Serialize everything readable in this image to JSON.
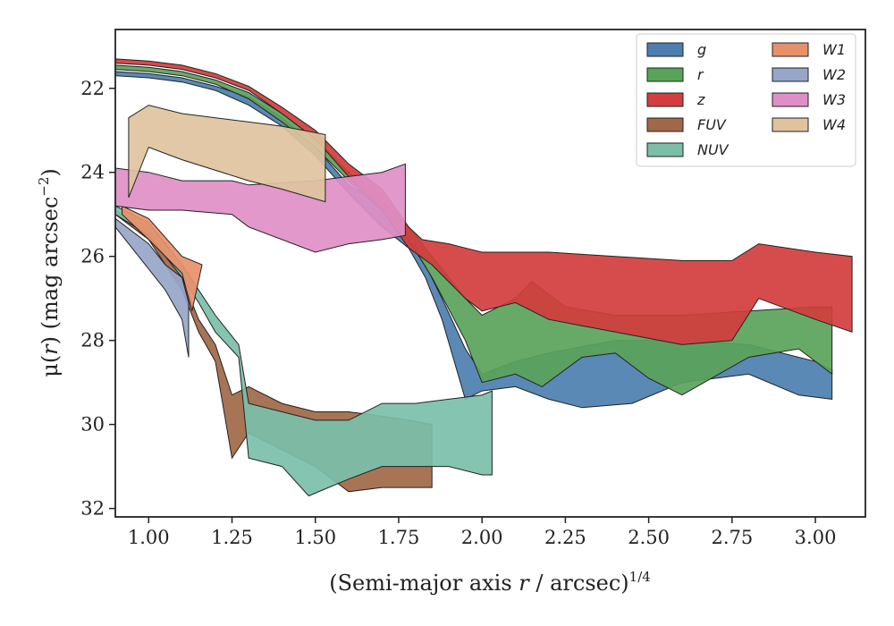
{
  "chart_data": {
    "type": "area",
    "xlabel": "(Semi-major axis r / arcsec)^1/4",
    "xlabel_parts": {
      "pre": "(Semi-major axis ",
      "var": "r",
      "mid": " / arcsec)",
      "sup": "1/4"
    },
    "ylabel": "μ(r) (mag arcsec^−2)",
    "ylabel_parts": {
      "mu": "μ(",
      "var": "r",
      "post": ") (mag arcsec",
      "sup": "−2",
      "close": ")"
    },
    "xlim": [
      0.9,
      3.15
    ],
    "ylim": [
      32.2,
      20.6
    ],
    "y_inverted": true,
    "xticks": [
      "1.00",
      "1.25",
      "1.50",
      "1.75",
      "2.00",
      "2.25",
      "2.50",
      "2.75",
      "3.00"
    ],
    "yticks": [
      "22",
      "24",
      "26",
      "28",
      "30",
      "32"
    ],
    "grid": false,
    "legend_position": "top-right",
    "legend_columns": 2,
    "series": [
      {
        "name": "g",
        "color": "#4c7fb0",
        "upper": [
          [
            0.9,
            21.6
          ],
          [
            1.0,
            21.65
          ],
          [
            1.1,
            21.75
          ],
          [
            1.2,
            21.95
          ],
          [
            1.3,
            22.2
          ],
          [
            1.4,
            22.7
          ],
          [
            1.5,
            23.4
          ],
          [
            1.6,
            24.3
          ],
          [
            1.7,
            24.8
          ],
          [
            1.78,
            25.5
          ],
          [
            1.83,
            26.2
          ],
          [
            1.88,
            27.0
          ],
          [
            1.95,
            28.2
          ],
          [
            2.0,
            28.8
          ],
          [
            2.1,
            28.5
          ],
          [
            2.2,
            28.3
          ],
          [
            2.4,
            28.0
          ],
          [
            2.6,
            28.0
          ],
          [
            2.8,
            28.1
          ],
          [
            3.0,
            28.5
          ],
          [
            3.05,
            28.7
          ]
        ],
        "lower": [
          [
            0.9,
            21.7
          ],
          [
            1.0,
            21.75
          ],
          [
            1.1,
            21.85
          ],
          [
            1.2,
            22.05
          ],
          [
            1.3,
            22.4
          ],
          [
            1.4,
            22.9
          ],
          [
            1.5,
            23.6
          ],
          [
            1.6,
            24.5
          ],
          [
            1.7,
            25.3
          ],
          [
            1.78,
            25.8
          ],
          [
            1.83,
            26.5
          ],
          [
            1.88,
            27.5
          ],
          [
            1.95,
            29.4
          ],
          [
            2.0,
            29.2
          ],
          [
            2.1,
            29.1
          ],
          [
            2.2,
            29.4
          ],
          [
            2.3,
            29.6
          ],
          [
            2.45,
            29.5
          ],
          [
            2.6,
            29.0
          ],
          [
            2.8,
            28.8
          ],
          [
            2.95,
            29.3
          ],
          [
            3.05,
            29.4
          ]
        ]
      },
      {
        "name": "r",
        "color": "#5aa35a",
        "upper": [
          [
            0.9,
            21.45
          ],
          [
            1.0,
            21.5
          ],
          [
            1.1,
            21.6
          ],
          [
            1.2,
            21.8
          ],
          [
            1.3,
            22.1
          ],
          [
            1.4,
            22.6
          ],
          [
            1.5,
            23.2
          ],
          [
            1.6,
            24.0
          ],
          [
            1.7,
            24.6
          ],
          [
            1.78,
            25.3
          ],
          [
            1.85,
            26.0
          ],
          [
            1.95,
            27.0
          ],
          [
            2.0,
            27.4
          ],
          [
            2.1,
            27.0
          ],
          [
            2.15,
            26.6
          ],
          [
            2.25,
            27.2
          ],
          [
            2.4,
            27.4
          ],
          [
            2.6,
            27.4
          ],
          [
            2.8,
            27.3
          ],
          [
            3.0,
            27.2
          ],
          [
            3.05,
            27.2
          ]
        ],
        "lower": [
          [
            0.9,
            21.55
          ],
          [
            1.0,
            21.6
          ],
          [
            1.1,
            21.7
          ],
          [
            1.2,
            21.9
          ],
          [
            1.3,
            22.25
          ],
          [
            1.4,
            22.8
          ],
          [
            1.5,
            23.4
          ],
          [
            1.6,
            24.2
          ],
          [
            1.7,
            24.9
          ],
          [
            1.78,
            25.6
          ],
          [
            1.85,
            26.5
          ],
          [
            1.95,
            28.0
          ],
          [
            2.0,
            29.0
          ],
          [
            2.1,
            28.8
          ],
          [
            2.18,
            29.1
          ],
          [
            2.3,
            28.4
          ],
          [
            2.4,
            28.3
          ],
          [
            2.5,
            28.9
          ],
          [
            2.6,
            29.3
          ],
          [
            2.8,
            28.4
          ],
          [
            2.95,
            28.2
          ],
          [
            3.05,
            28.8
          ]
        ]
      },
      {
        "name": "z",
        "color": "#d23d3d",
        "upper": [
          [
            0.9,
            21.3
          ],
          [
            1.0,
            21.35
          ],
          [
            1.1,
            21.45
          ],
          [
            1.2,
            21.65
          ],
          [
            1.3,
            21.95
          ],
          [
            1.4,
            22.45
          ],
          [
            1.5,
            23.0
          ],
          [
            1.6,
            23.8
          ],
          [
            1.7,
            24.4
          ],
          [
            1.78,
            25.3
          ],
          [
            1.82,
            25.6
          ],
          [
            1.9,
            25.7
          ],
          [
            1.95,
            25.8
          ],
          [
            2.0,
            25.9
          ],
          [
            2.1,
            25.9
          ],
          [
            2.2,
            25.9
          ],
          [
            2.4,
            26.0
          ],
          [
            2.6,
            26.1
          ],
          [
            2.75,
            26.1
          ],
          [
            2.83,
            25.7
          ],
          [
            3.0,
            25.9
          ],
          [
            3.11,
            26.0
          ]
        ],
        "lower": [
          [
            0.9,
            21.4
          ],
          [
            1.0,
            21.45
          ],
          [
            1.1,
            21.55
          ],
          [
            1.2,
            21.75
          ],
          [
            1.3,
            22.05
          ],
          [
            1.4,
            22.6
          ],
          [
            1.5,
            23.2
          ],
          [
            1.6,
            24.1
          ],
          [
            1.7,
            24.9
          ],
          [
            1.78,
            25.8
          ],
          [
            1.85,
            26.2
          ],
          [
            1.95,
            27.0
          ],
          [
            2.0,
            27.3
          ],
          [
            2.1,
            27.1
          ],
          [
            2.2,
            27.5
          ],
          [
            2.4,
            27.8
          ],
          [
            2.6,
            28.1
          ],
          [
            2.75,
            28.0
          ],
          [
            2.83,
            27.0
          ],
          [
            3.0,
            27.5
          ],
          [
            3.11,
            27.8
          ]
        ]
      },
      {
        "name": "FUV",
        "color": "#a06848",
        "upper": [
          [
            0.9,
            24.9
          ],
          [
            1.0,
            25.4
          ],
          [
            1.1,
            26.5
          ],
          [
            1.15,
            27.5
          ],
          [
            1.2,
            28.1
          ],
          [
            1.25,
            29.3
          ],
          [
            1.3,
            29.1
          ],
          [
            1.4,
            29.5
          ],
          [
            1.5,
            29.7
          ],
          [
            1.6,
            29.7
          ],
          [
            1.7,
            29.8
          ],
          [
            1.78,
            29.9
          ],
          [
            1.85,
            30.0
          ]
        ],
        "lower": [
          [
            0.9,
            25.0
          ],
          [
            1.0,
            25.6
          ],
          [
            1.1,
            26.8
          ],
          [
            1.15,
            27.8
          ],
          [
            1.2,
            28.5
          ],
          [
            1.25,
            30.8
          ],
          [
            1.3,
            30.2
          ],
          [
            1.4,
            30.6
          ],
          [
            1.5,
            31.0
          ],
          [
            1.6,
            31.6
          ],
          [
            1.7,
            31.5
          ],
          [
            1.78,
            31.5
          ],
          [
            1.85,
            31.5
          ]
        ]
      },
      {
        "name": "NUV",
        "color": "#7bbfa9",
        "upper": [
          [
            0.9,
            24.8
          ],
          [
            1.0,
            25.2
          ],
          [
            1.1,
            26.2
          ],
          [
            1.15,
            26.8
          ],
          [
            1.2,
            27.4
          ],
          [
            1.27,
            28.1
          ],
          [
            1.3,
            29.5
          ],
          [
            1.4,
            29.7
          ],
          [
            1.5,
            29.9
          ],
          [
            1.6,
            29.9
          ],
          [
            1.7,
            29.5
          ],
          [
            1.8,
            29.5
          ],
          [
            1.9,
            29.4
          ],
          [
            2.0,
            29.3
          ],
          [
            2.03,
            29.2
          ]
        ],
        "lower": [
          [
            0.9,
            25.0
          ],
          [
            1.0,
            25.5
          ],
          [
            1.1,
            26.5
          ],
          [
            1.15,
            27.1
          ],
          [
            1.2,
            27.8
          ],
          [
            1.27,
            28.4
          ],
          [
            1.3,
            30.8
          ],
          [
            1.4,
            31.0
          ],
          [
            1.48,
            31.7
          ],
          [
            1.6,
            31.3
          ],
          [
            1.7,
            31.0
          ],
          [
            1.8,
            31.0
          ],
          [
            1.9,
            31.0
          ],
          [
            2.0,
            31.2
          ],
          [
            2.03,
            31.2
          ]
        ]
      },
      {
        "name": "W1",
        "color": "#e8906a",
        "upper": [
          [
            0.92,
            24.8
          ],
          [
            1.0,
            25.1
          ],
          [
            1.1,
            26.0
          ],
          [
            1.16,
            26.2
          ]
        ],
        "lower": [
          [
            0.92,
            25.0
          ],
          [
            1.0,
            25.6
          ],
          [
            1.1,
            26.4
          ],
          [
            1.13,
            27.3
          ]
        ]
      },
      {
        "name": "W2",
        "color": "#96a6c8",
        "upper": [
          [
            0.9,
            25.1
          ],
          [
            1.0,
            25.7
          ],
          [
            1.05,
            26.2
          ],
          [
            1.1,
            26.5
          ],
          [
            1.12,
            27.1
          ]
        ],
        "lower": [
          [
            0.9,
            25.3
          ],
          [
            1.0,
            26.3
          ],
          [
            1.05,
            26.8
          ],
          [
            1.1,
            27.5
          ],
          [
            1.12,
            28.4
          ]
        ]
      },
      {
        "name": "W3",
        "color": "#df8fc7",
        "upper": [
          [
            0.9,
            23.9
          ],
          [
            1.0,
            24.0
          ],
          [
            1.1,
            24.2
          ],
          [
            1.25,
            24.2
          ],
          [
            1.3,
            24.3
          ],
          [
            1.5,
            24.2
          ],
          [
            1.6,
            24.1
          ],
          [
            1.7,
            24.0
          ],
          [
            1.77,
            23.8
          ]
        ],
        "lower": [
          [
            0.9,
            24.8
          ],
          [
            1.0,
            24.9
          ],
          [
            1.1,
            24.9
          ],
          [
            1.25,
            25.0
          ],
          [
            1.3,
            25.3
          ],
          [
            1.5,
            25.9
          ],
          [
            1.6,
            25.7
          ],
          [
            1.7,
            25.6
          ],
          [
            1.77,
            25.5
          ]
        ]
      },
      {
        "name": "W4",
        "color": "#e0c39e",
        "upper": [
          [
            0.94,
            22.7
          ],
          [
            1.0,
            22.4
          ],
          [
            1.1,
            22.6
          ],
          [
            1.3,
            22.8
          ],
          [
            1.4,
            22.9
          ],
          [
            1.53,
            23.1
          ]
        ],
        "lower": [
          [
            0.94,
            24.6
          ],
          [
            1.0,
            23.4
          ],
          [
            1.1,
            23.7
          ],
          [
            1.3,
            24.2
          ],
          [
            1.4,
            24.4
          ],
          [
            1.53,
            24.7
          ]
        ]
      }
    ]
  }
}
